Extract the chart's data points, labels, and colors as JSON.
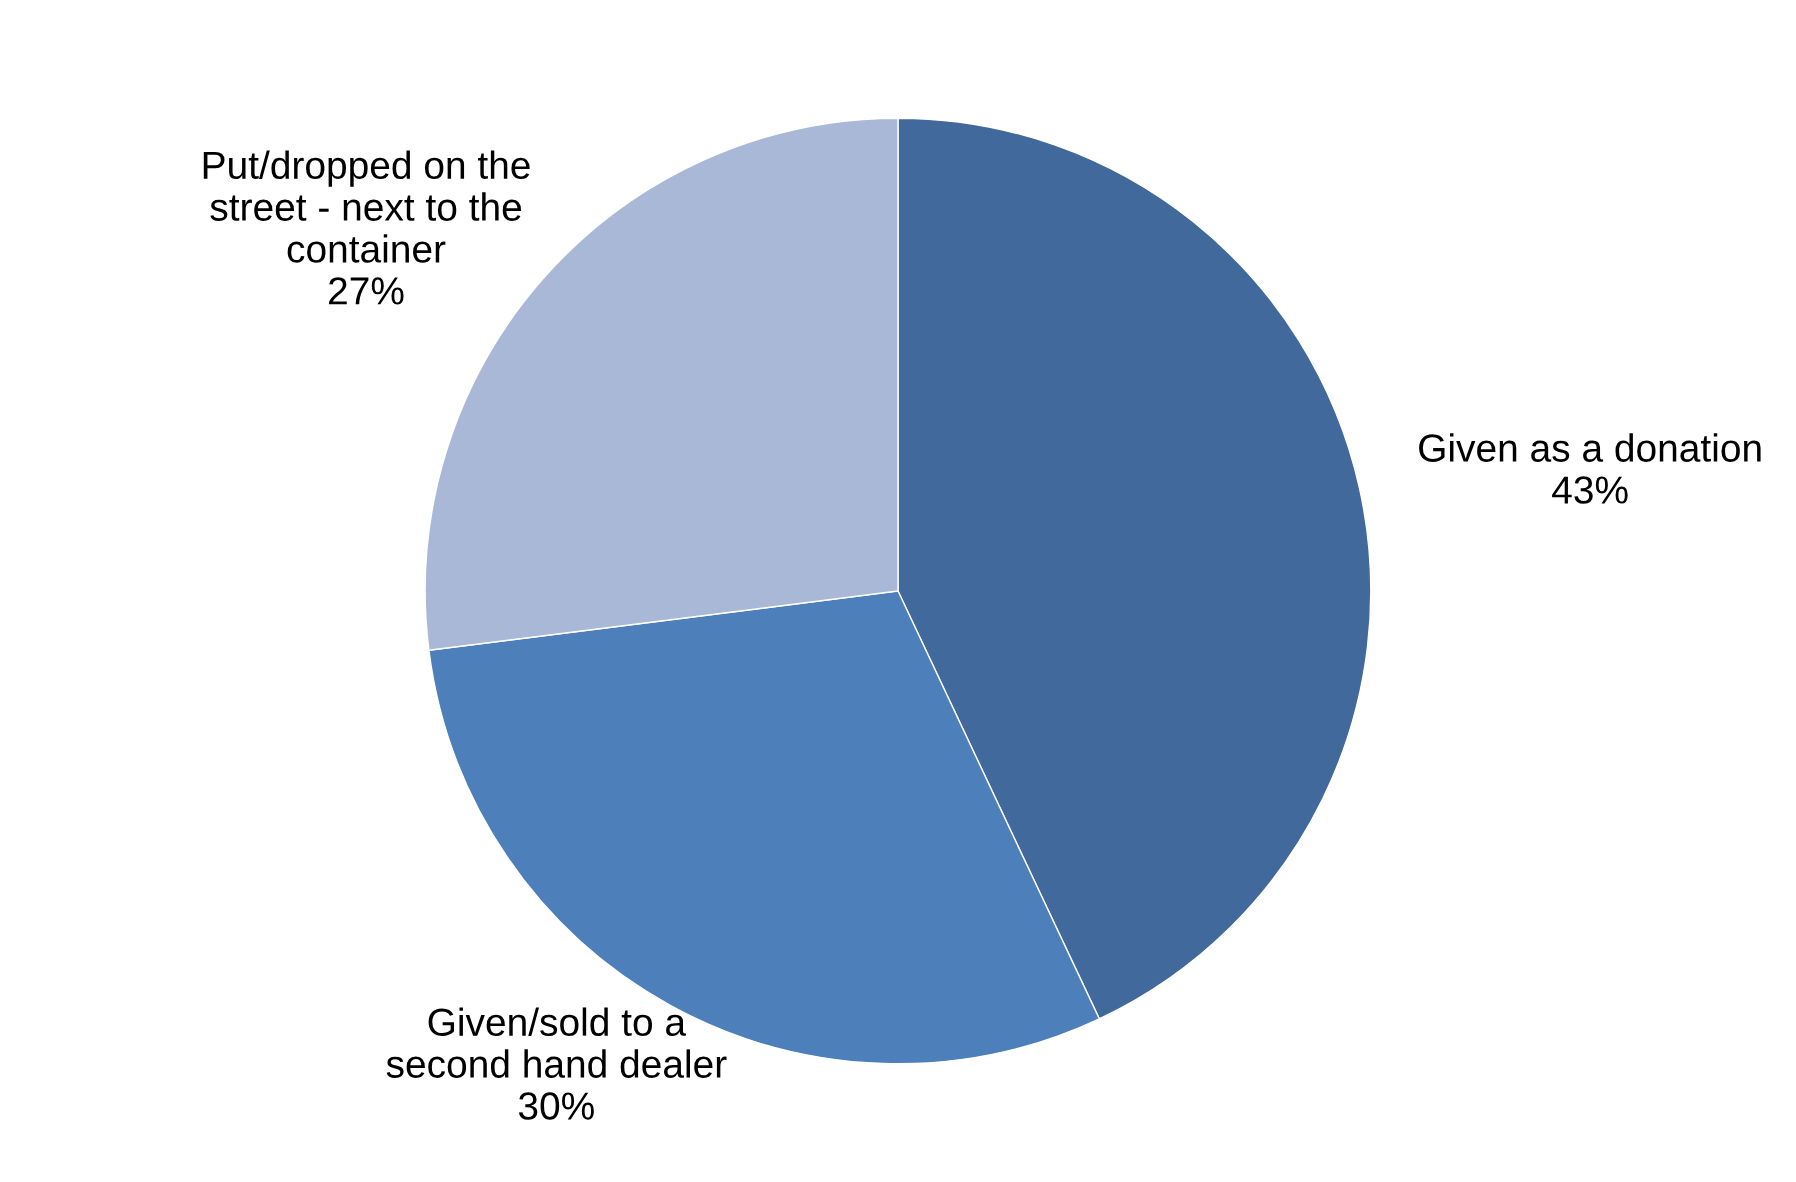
{
  "chart_data": {
    "type": "pie",
    "categories": [
      "Given as a donation",
      "Given/sold to a\nsecond hand dealer",
      "Put/dropped on the\nstreet - next to the\ncontainer"
    ],
    "values": [
      43,
      30,
      27
    ],
    "value_labels": [
      "43%",
      "30%",
      "27%"
    ],
    "colors": [
      "#41699c",
      "#4d7fba",
      "#a9b8d6"
    ]
  }
}
